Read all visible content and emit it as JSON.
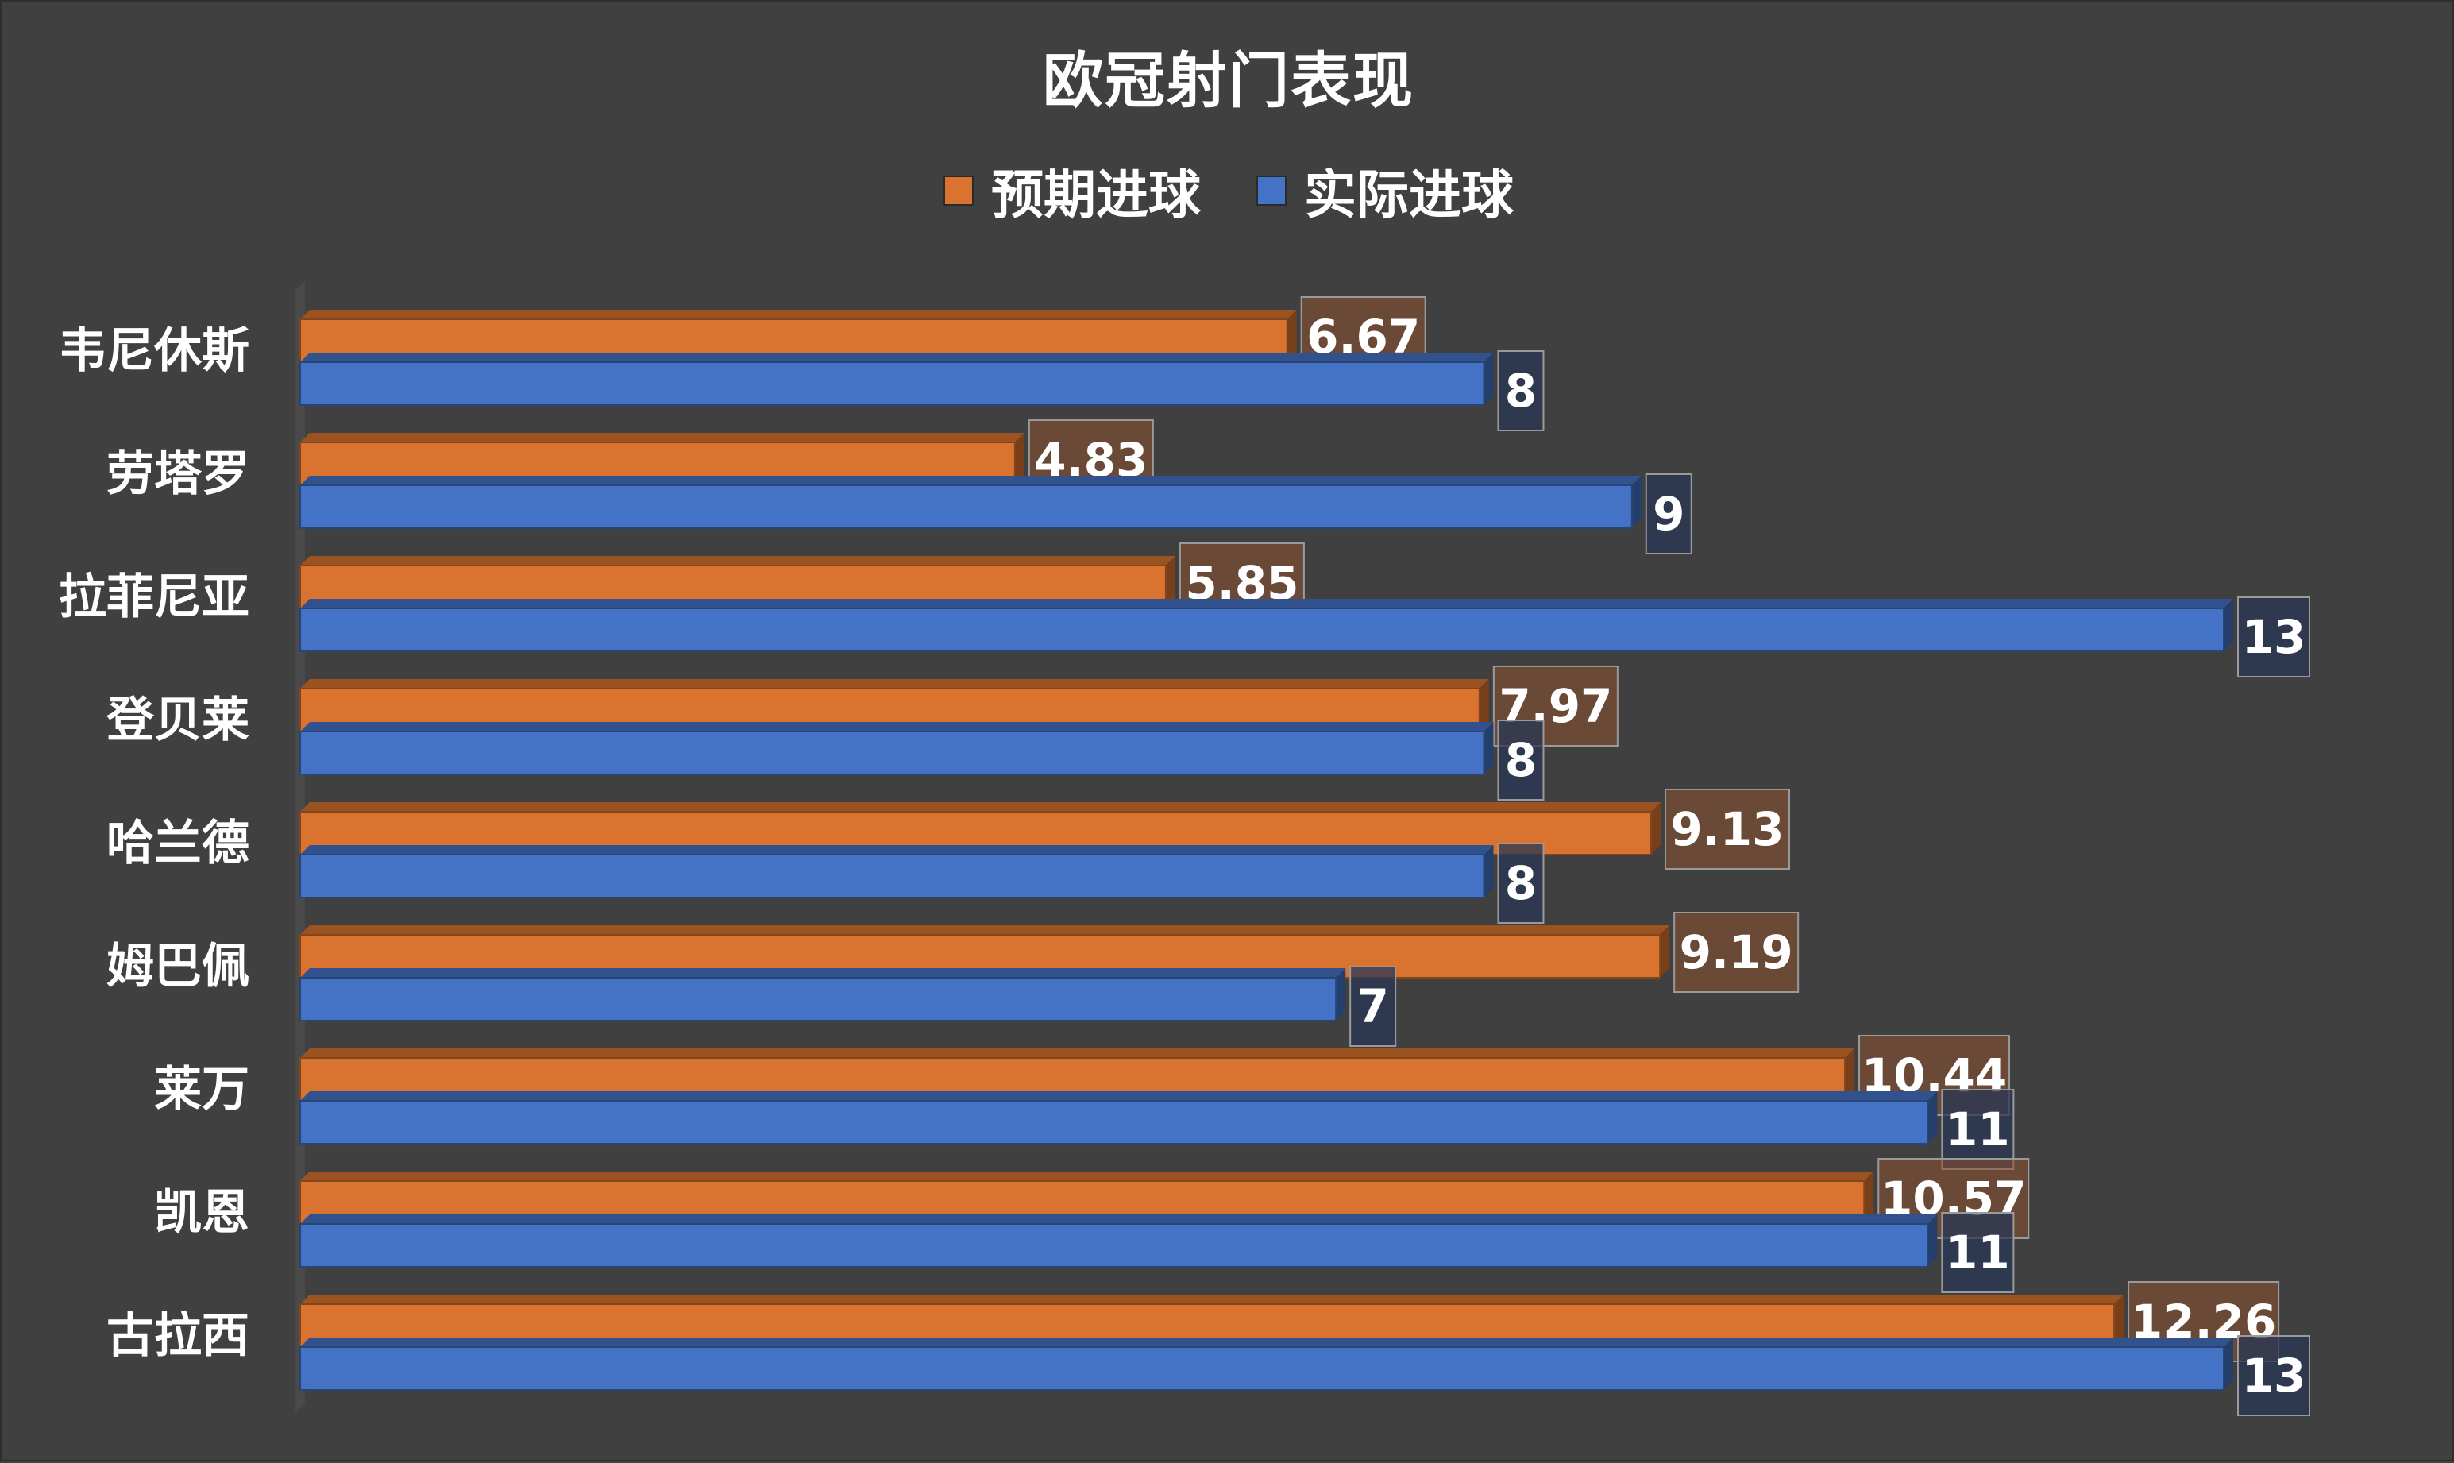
{
  "chart_data": {
    "type": "bar",
    "orientation": "horizontal",
    "title": "欧冠射门表现",
    "categories": [
      "韦尼休斯",
      "劳塔罗",
      "拉菲尼亚",
      "登贝莱",
      "哈兰德",
      "姆巴佩",
      "莱万",
      "凯恩",
      "古拉西"
    ],
    "series": [
      {
        "name": "预期进球",
        "color": "#D9732F",
        "values": [
          6.67,
          4.83,
          5.85,
          7.97,
          9.13,
          9.19,
          10.44,
          10.57,
          12.26
        ],
        "labels": [
          "6.67",
          "4.83",
          "5.85",
          "7.97",
          "9.13",
          "9.19",
          "10.44",
          "10.57",
          "12.26"
        ]
      },
      {
        "name": "实际进球",
        "color": "#4472C4",
        "values": [
          8,
          9,
          13,
          8,
          8,
          7,
          11,
          11,
          13
        ],
        "labels": [
          "8",
          "9",
          "13",
          "8",
          "8",
          "7",
          "11",
          "11",
          "13"
        ]
      }
    ],
    "xlim": [
      0,
      13
    ],
    "grid": false,
    "legend_position": "top"
  }
}
